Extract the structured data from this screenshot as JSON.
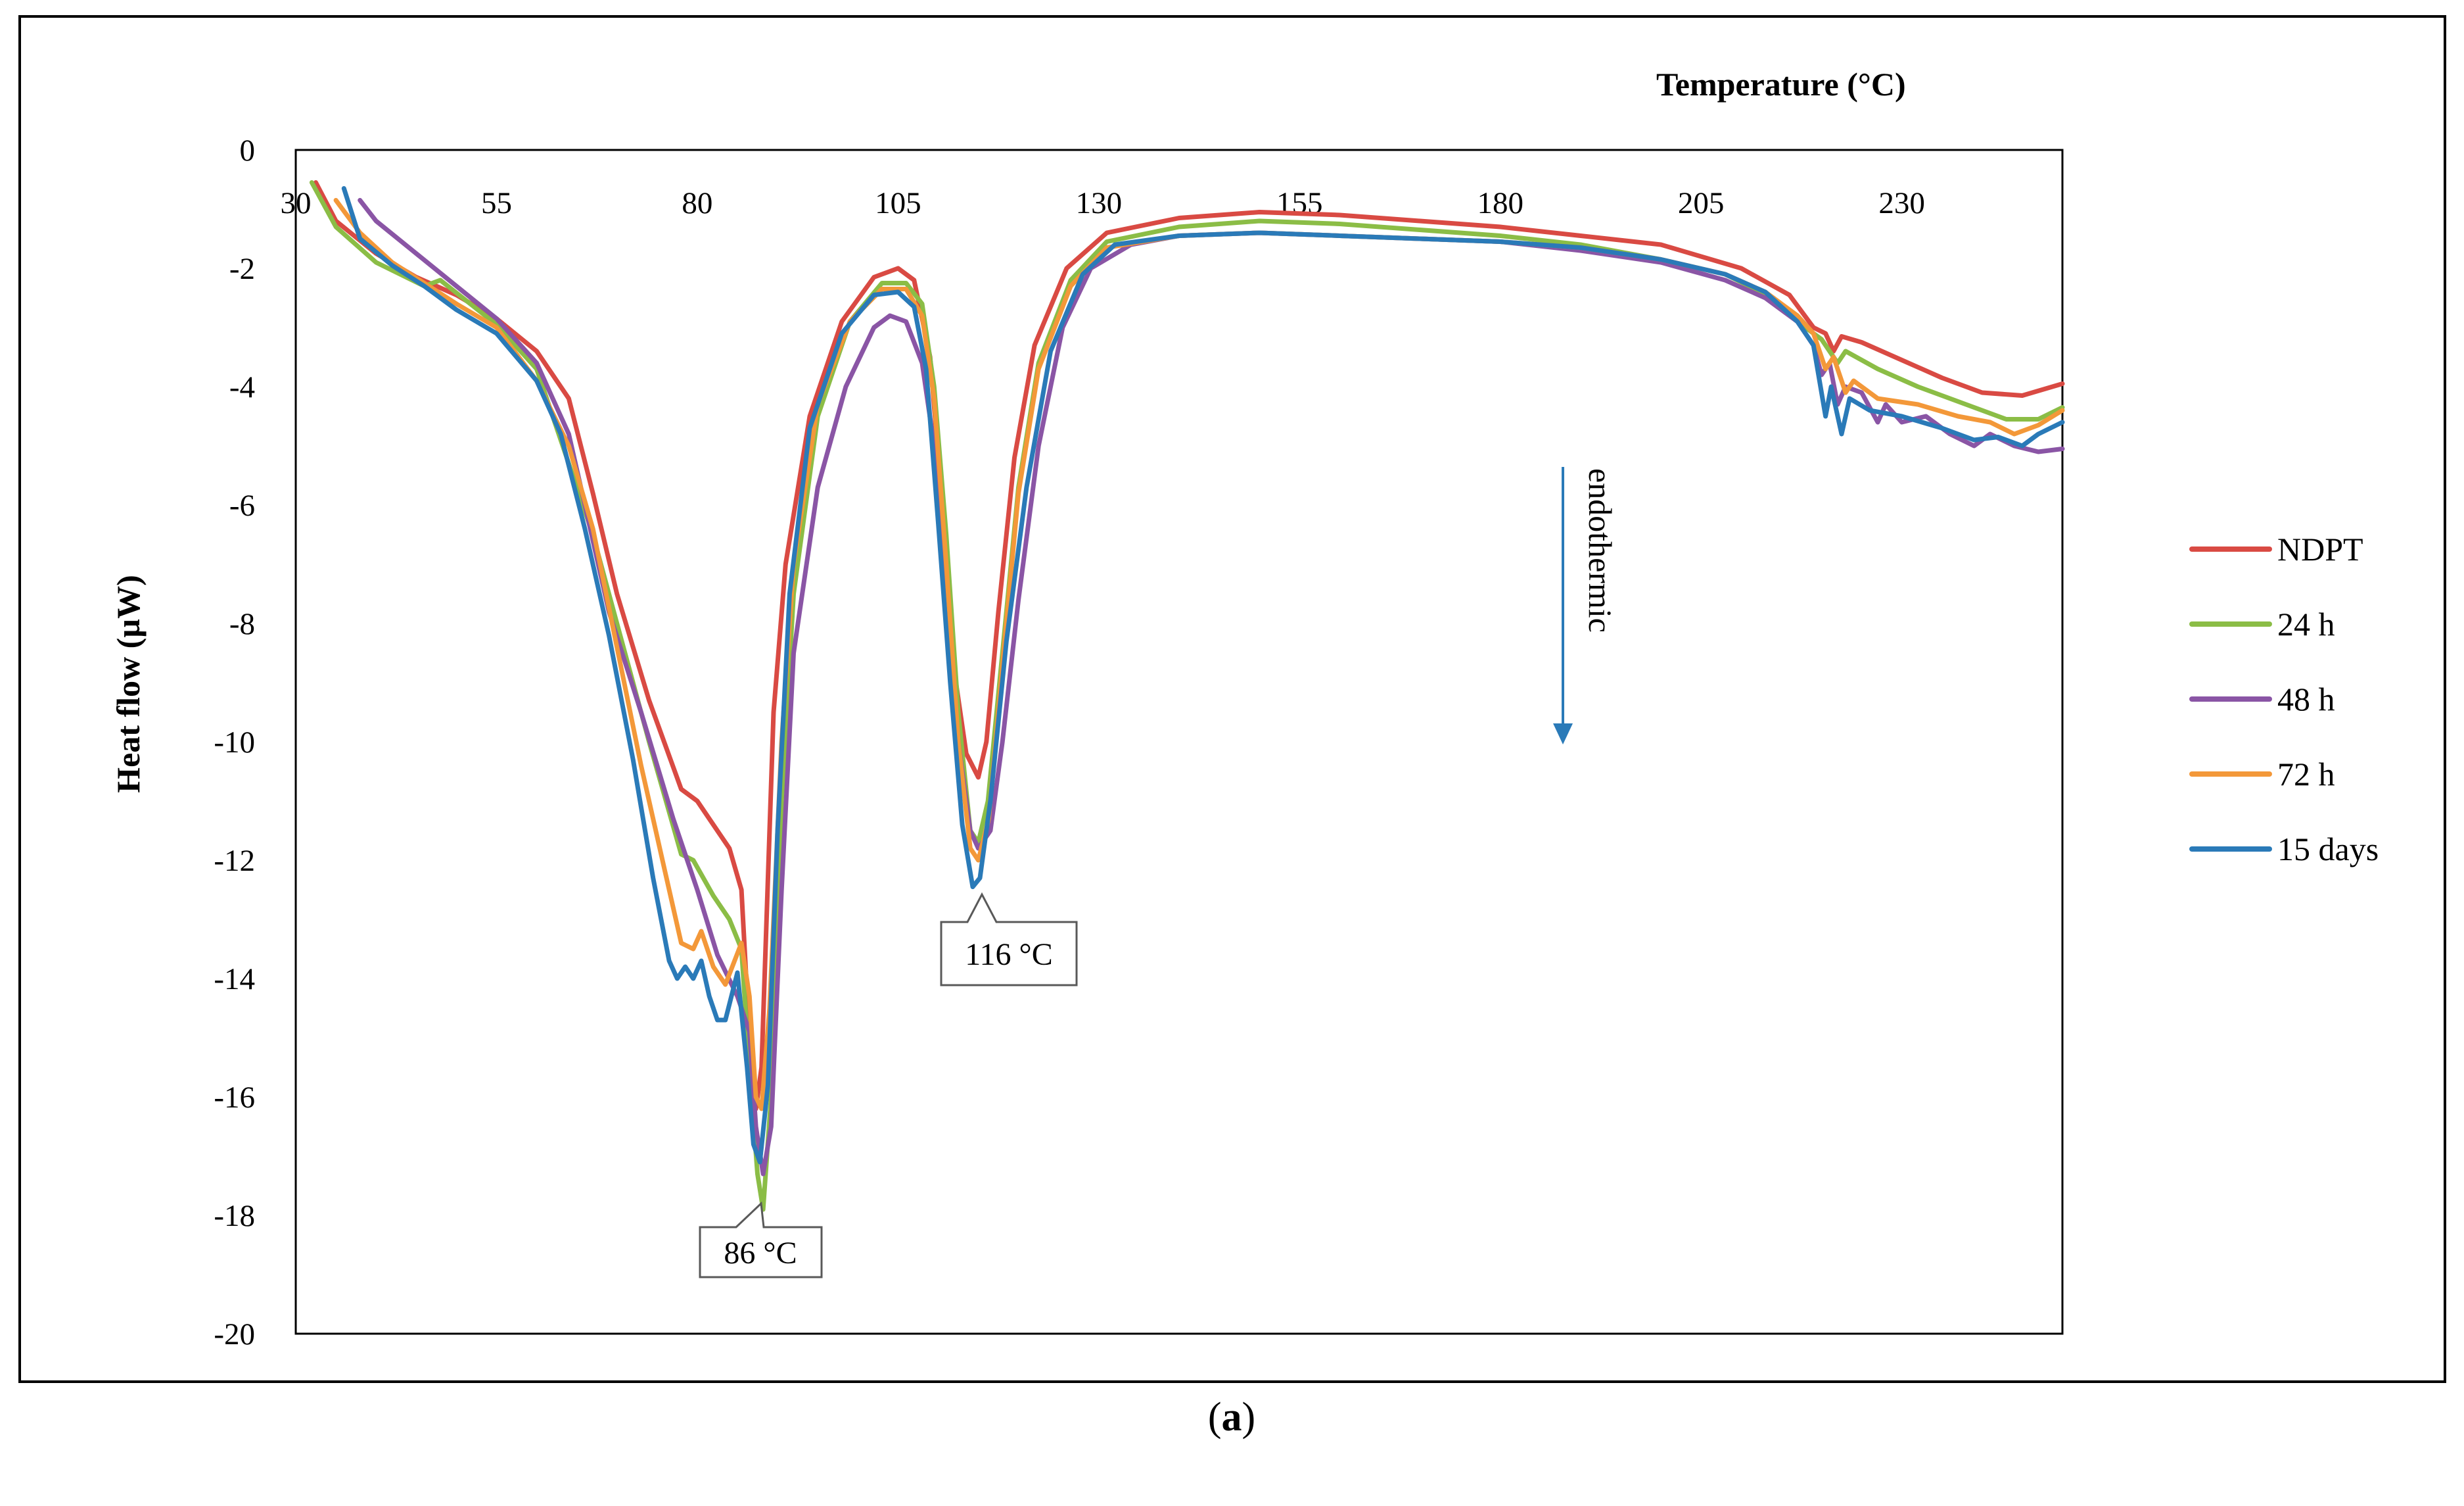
{
  "chart_data": {
    "type": "line",
    "title": "",
    "xlabel": "Temperature (°C)",
    "ylabel": "Heat flow (µW)",
    "xlim": [
      30,
      250
    ],
    "ylim": [
      -20,
      0
    ],
    "x_ticks": [
      30,
      55,
      80,
      105,
      130,
      155,
      180,
      205,
      230
    ],
    "y_ticks": [
      0,
      -2,
      -4,
      -6,
      -8,
      -10,
      -12,
      -14,
      -16,
      -18,
      -20
    ],
    "grid": false,
    "legend_position": "right",
    "series": [
      {
        "name": "NDPT",
        "color": "#d94a43",
        "points": [
          [
            32.5,
            -0.55
          ],
          [
            35,
            -1.2
          ],
          [
            40,
            -1.75
          ],
          [
            45,
            -2.15
          ],
          [
            50,
            -2.45
          ],
          [
            55,
            -2.85
          ],
          [
            60,
            -3.4
          ],
          [
            64,
            -4.2
          ],
          [
            67,
            -5.8
          ],
          [
            70,
            -7.5
          ],
          [
            74,
            -9.3
          ],
          [
            78,
            -10.8
          ],
          [
            80,
            -11.0
          ],
          [
            82,
            -11.4
          ],
          [
            84,
            -11.8
          ],
          [
            85.5,
            -12.5
          ],
          [
            86.5,
            -15.0
          ],
          [
            87.3,
            -16.2
          ],
          [
            88,
            -15.5
          ],
          [
            89.5,
            -9.5
          ],
          [
            91,
            -7.0
          ],
          [
            94,
            -4.5
          ],
          [
            98,
            -2.9
          ],
          [
            102,
            -2.15
          ],
          [
            105,
            -2.0
          ],
          [
            107,
            -2.2
          ],
          [
            109,
            -3.5
          ],
          [
            110.5,
            -6.0
          ],
          [
            112,
            -8.8
          ],
          [
            113.5,
            -10.2
          ],
          [
            115,
            -10.6
          ],
          [
            116,
            -10.0
          ],
          [
            117.5,
            -7.8
          ],
          [
            119.5,
            -5.2
          ],
          [
            122,
            -3.3
          ],
          [
            126,
            -2.0
          ],
          [
            131,
            -1.4
          ],
          [
            140,
            -1.15
          ],
          [
            150,
            -1.05
          ],
          [
            160,
            -1.1
          ],
          [
            170,
            -1.2
          ],
          [
            180,
            -1.3
          ],
          [
            190,
            -1.45
          ],
          [
            200,
            -1.6
          ],
          [
            210,
            -2.0
          ],
          [
            216,
            -2.45
          ],
          [
            219,
            -3.0
          ],
          [
            220.5,
            -3.1
          ],
          [
            221.5,
            -3.4
          ],
          [
            222.5,
            -3.15
          ],
          [
            225,
            -3.25
          ],
          [
            230,
            -3.55
          ],
          [
            235,
            -3.85
          ],
          [
            240,
            -4.1
          ],
          [
            245,
            -4.15
          ],
          [
            250,
            -3.95
          ]
        ]
      },
      {
        "name": "24 h",
        "color": "#8bbd46",
        "points": [
          [
            32,
            -0.55
          ],
          [
            35,
            -1.3
          ],
          [
            40,
            -1.9
          ],
          [
            46,
            -2.3
          ],
          [
            48,
            -2.2
          ],
          [
            55,
            -2.95
          ],
          [
            60,
            -3.7
          ],
          [
            64,
            -5.3
          ],
          [
            67,
            -6.5
          ],
          [
            70,
            -8.0
          ],
          [
            74,
            -10.0
          ],
          [
            78,
            -11.9
          ],
          [
            79.5,
            -12.0
          ],
          [
            82,
            -12.6
          ],
          [
            84,
            -13.0
          ],
          [
            85.5,
            -13.5
          ],
          [
            86.5,
            -15.5
          ],
          [
            87.5,
            -17.3
          ],
          [
            88.2,
            -17.9
          ],
          [
            89.2,
            -16.0
          ],
          [
            90.5,
            -11.0
          ],
          [
            92,
            -7.5
          ],
          [
            95,
            -4.5
          ],
          [
            99,
            -2.9
          ],
          [
            103,
            -2.25
          ],
          [
            106,
            -2.25
          ],
          [
            108,
            -2.6
          ],
          [
            109.5,
            -4.0
          ],
          [
            111,
            -6.5
          ],
          [
            112.5,
            -9.5
          ],
          [
            114,
            -11.5
          ],
          [
            115,
            -11.7
          ],
          [
            116.2,
            -11.0
          ],
          [
            118,
            -8.5
          ],
          [
            120,
            -5.7
          ],
          [
            122.5,
            -3.6
          ],
          [
            126.5,
            -2.2
          ],
          [
            131,
            -1.55
          ],
          [
            140,
            -1.3
          ],
          [
            150,
            -1.2
          ],
          [
            160,
            -1.25
          ],
          [
            170,
            -1.35
          ],
          [
            180,
            -1.45
          ],
          [
            190,
            -1.6
          ],
          [
            200,
            -1.85
          ],
          [
            208,
            -2.1
          ],
          [
            214,
            -2.5
          ],
          [
            218,
            -3.0
          ],
          [
            220,
            -3.2
          ],
          [
            222,
            -3.6
          ],
          [
            223,
            -3.4
          ],
          [
            227,
            -3.7
          ],
          [
            232,
            -4.0
          ],
          [
            238,
            -4.3
          ],
          [
            243,
            -4.55
          ],
          [
            247,
            -4.55
          ],
          [
            250,
            -4.35
          ]
        ]
      },
      {
        "name": "48 h",
        "color": "#8a55a5",
        "points": [
          [
            38,
            -0.85
          ],
          [
            40,
            -1.2
          ],
          [
            45,
            -1.75
          ],
          [
            50,
            -2.3
          ],
          [
            55,
            -2.85
          ],
          [
            60,
            -3.6
          ],
          [
            64,
            -4.8
          ],
          [
            66,
            -6.0
          ],
          [
            69,
            -7.8
          ],
          [
            73,
            -9.5
          ],
          [
            77,
            -11.3
          ],
          [
            80,
            -12.5
          ],
          [
            82.5,
            -13.6
          ],
          [
            85,
            -14.3
          ],
          [
            86.5,
            -14.9
          ],
          [
            87.3,
            -16.5
          ],
          [
            88.2,
            -17.3
          ],
          [
            89.2,
            -16.5
          ],
          [
            90.5,
            -12.5
          ],
          [
            92,
            -8.5
          ],
          [
            95,
            -5.7
          ],
          [
            98.5,
            -4.0
          ],
          [
            102,
            -3.0
          ],
          [
            104,
            -2.8
          ],
          [
            106,
            -2.9
          ],
          [
            108,
            -3.6
          ],
          [
            109.5,
            -5.0
          ],
          [
            111,
            -7.5
          ],
          [
            112.5,
            -10.0
          ],
          [
            114,
            -11.5
          ],
          [
            115,
            -11.8
          ],
          [
            116.5,
            -11.5
          ],
          [
            118,
            -10.0
          ],
          [
            120,
            -7.6
          ],
          [
            122.5,
            -5.0
          ],
          [
            125.5,
            -3.0
          ],
          [
            129,
            -2.0
          ],
          [
            134,
            -1.6
          ],
          [
            140,
            -1.45
          ],
          [
            150,
            -1.4
          ],
          [
            160,
            -1.45
          ],
          [
            170,
            -1.5
          ],
          [
            180,
            -1.55
          ],
          [
            190,
            -1.7
          ],
          [
            200,
            -1.9
          ],
          [
            208,
            -2.2
          ],
          [
            213,
            -2.5
          ],
          [
            217,
            -2.9
          ],
          [
            219,
            -3.3
          ],
          [
            220,
            -3.8
          ],
          [
            221,
            -3.6
          ],
          [
            222,
            -4.3
          ],
          [
            223,
            -4.0
          ],
          [
            225,
            -4.1
          ],
          [
            227,
            -4.6
          ],
          [
            228,
            -4.3
          ],
          [
            230,
            -4.6
          ],
          [
            233,
            -4.5
          ],
          [
            236,
            -4.8
          ],
          [
            239,
            -5.0
          ],
          [
            241,
            -4.8
          ],
          [
            244,
            -5.0
          ],
          [
            247,
            -5.1
          ],
          [
            250,
            -5.05
          ]
        ]
      },
      {
        "name": "72 h",
        "color": "#f39839",
        "points": [
          [
            35,
            -0.85
          ],
          [
            38,
            -1.4
          ],
          [
            42,
            -1.9
          ],
          [
            46,
            -2.25
          ],
          [
            50,
            -2.6
          ],
          [
            55,
            -3.0
          ],
          [
            60,
            -3.9
          ],
          [
            64,
            -5.0
          ],
          [
            67,
            -6.4
          ],
          [
            70,
            -8.4
          ],
          [
            73,
            -10.4
          ],
          [
            76,
            -12.2
          ],
          [
            78,
            -13.4
          ],
          [
            79.5,
            -13.5
          ],
          [
            80.5,
            -13.2
          ],
          [
            82,
            -13.8
          ],
          [
            83.5,
            -14.1
          ],
          [
            85.5,
            -13.4
          ],
          [
            86.5,
            -14.3
          ],
          [
            87.3,
            -16.0
          ],
          [
            88,
            -16.2
          ],
          [
            89,
            -14.5
          ],
          [
            90.5,
            -10.0
          ],
          [
            92,
            -7.0
          ],
          [
            95,
            -4.3
          ],
          [
            99,
            -2.9
          ],
          [
            103,
            -2.35
          ],
          [
            106,
            -2.35
          ],
          [
            108,
            -2.8
          ],
          [
            109.5,
            -4.2
          ],
          [
            111,
            -7.0
          ],
          [
            112.5,
            -10.0
          ],
          [
            114,
            -11.8
          ],
          [
            115,
            -12.0
          ],
          [
            116.3,
            -11.3
          ],
          [
            118,
            -8.7
          ],
          [
            120,
            -5.8
          ],
          [
            122.5,
            -3.7
          ],
          [
            126.5,
            -2.3
          ],
          [
            131,
            -1.65
          ],
          [
            140,
            -1.45
          ],
          [
            150,
            -1.4
          ],
          [
            160,
            -1.45
          ],
          [
            170,
            -1.5
          ],
          [
            180,
            -1.55
          ],
          [
            190,
            -1.65
          ],
          [
            200,
            -1.85
          ],
          [
            208,
            -2.1
          ],
          [
            213,
            -2.4
          ],
          [
            217,
            -2.8
          ],
          [
            219,
            -3.1
          ],
          [
            220.5,
            -3.7
          ],
          [
            221.5,
            -3.5
          ],
          [
            223,
            -4.1
          ],
          [
            224,
            -3.9
          ],
          [
            227,
            -4.2
          ],
          [
            232,
            -4.3
          ],
          [
            237,
            -4.5
          ],
          [
            241,
            -4.6
          ],
          [
            244,
            -4.8
          ],
          [
            247,
            -4.65
          ],
          [
            250,
            -4.4
          ]
        ]
      },
      {
        "name": "15 days",
        "color": "#2a7ab8",
        "points": [
          [
            36,
            -0.65
          ],
          [
            38,
            -1.5
          ],
          [
            42,
            -1.95
          ],
          [
            46,
            -2.3
          ],
          [
            50,
            -2.7
          ],
          [
            55,
            -3.1
          ],
          [
            60,
            -3.9
          ],
          [
            63,
            -4.8
          ],
          [
            66,
            -6.4
          ],
          [
            69,
            -8.2
          ],
          [
            72,
            -10.3
          ],
          [
            74.5,
            -12.3
          ],
          [
            76.5,
            -13.7
          ],
          [
            77.5,
            -14.0
          ],
          [
            78.5,
            -13.8
          ],
          [
            79.5,
            -14.0
          ],
          [
            80.5,
            -13.7
          ],
          [
            81.5,
            -14.3
          ],
          [
            82.5,
            -14.7
          ],
          [
            83.5,
            -14.7
          ],
          [
            85,
            -13.9
          ],
          [
            86.2,
            -15.5
          ],
          [
            87,
            -16.8
          ],
          [
            87.8,
            -17.1
          ],
          [
            88.8,
            -15.8
          ],
          [
            90,
            -11.5
          ],
          [
            91.5,
            -7.5
          ],
          [
            94,
            -4.7
          ],
          [
            98,
            -3.1
          ],
          [
            102,
            -2.45
          ],
          [
            105,
            -2.4
          ],
          [
            107,
            -2.65
          ],
          [
            108.5,
            -3.7
          ],
          [
            110,
            -6.3
          ],
          [
            111.5,
            -9.0
          ],
          [
            113,
            -11.4
          ],
          [
            114.3,
            -12.45
          ],
          [
            115.2,
            -12.3
          ],
          [
            116.5,
            -11.0
          ],
          [
            118.5,
            -8.3
          ],
          [
            121,
            -5.7
          ],
          [
            124,
            -3.4
          ],
          [
            128,
            -2.1
          ],
          [
            132,
            -1.6
          ],
          [
            140,
            -1.45
          ],
          [
            150,
            -1.4
          ],
          [
            160,
            -1.45
          ],
          [
            170,
            -1.5
          ],
          [
            180,
            -1.55
          ],
          [
            190,
            -1.65
          ],
          [
            200,
            -1.85
          ],
          [
            208,
            -2.1
          ],
          [
            213,
            -2.4
          ],
          [
            217,
            -2.9
          ],
          [
            219,
            -3.3
          ],
          [
            220.5,
            -4.5
          ],
          [
            221.2,
            -4.0
          ],
          [
            222.5,
            -4.8
          ],
          [
            223.5,
            -4.2
          ],
          [
            226,
            -4.4
          ],
          [
            230,
            -4.5
          ],
          [
            235,
            -4.7
          ],
          [
            239,
            -4.9
          ],
          [
            242,
            -4.85
          ],
          [
            245,
            -5.0
          ],
          [
            247,
            -4.8
          ],
          [
            250,
            -4.6
          ]
        ]
      }
    ],
    "annotations": [
      {
        "text": "86 °C",
        "x": 88,
        "y": -17.9
      },
      {
        "text": "116 °C",
        "x": 115,
        "y": -12.5
      },
      {
        "text": "endothermic",
        "kind": "arrow-label",
        "direction": "down"
      }
    ]
  },
  "caption": {
    "letter": "a",
    "open": "(",
    "close": ")"
  }
}
